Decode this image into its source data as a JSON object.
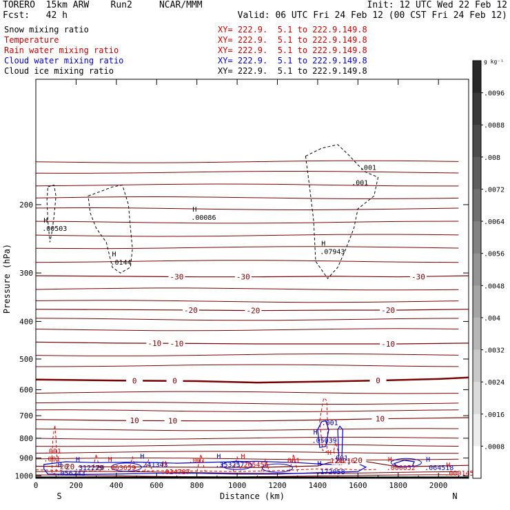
{
  "header": {
    "left1": "TORERO  15km ARW    Run2     NCAR/MMM",
    "left2": "Fcst:   42 h",
    "init": "Init: 12 UTC Wed 22 Feb 12",
    "valid": "Valid: 06 UTC Fri 24 Feb 12 (00 CST Fri 24 Feb 12)"
  },
  "fields": [
    {
      "label": "Snow mixing ratio",
      "xy": "XY= 222.9.  5.1 to 222.9.149.8",
      "color": "#000000"
    },
    {
      "label": "Temperature",
      "xy": "XY= 222.9.  5.1 to 222.9.149.8",
      "color": "#cc0000"
    },
    {
      "label": "Rain water mixing ratio",
      "xy": "XY= 222.9.  5.1 to 222.9.149.8",
      "color": "#cc0000"
    },
    {
      "label": "Cloud water mixing ratio",
      "xy": "XY= 222.9.  5.1 to 222.9.149.8",
      "color": "#0000cc"
    },
    {
      "label": "Cloud ice mixing ratio",
      "xy": "XY= 222.9.  5.1 to 222.9.149.8",
      "color": "#000000"
    }
  ],
  "colors": {
    "temperature": "#7a0000",
    "freezing": "#7a0000",
    "rain": "#dd0000",
    "cloud_water": "#0000cc",
    "snow": "#000000",
    "axis": "#000000"
  },
  "chart_data": {
    "type": "contour",
    "xlabel": "Distance (km)",
    "ylabel": "Pressure (hPa)",
    "xlim": [
      0,
      2150
    ],
    "ylim": [
      1015,
      95
    ],
    "y_scale": "log",
    "x_ticks": [
      0,
      200,
      400,
      600,
      800,
      1000,
      1200,
      1400,
      1600,
      1800,
      2000
    ],
    "y_ticks": [
      200,
      300,
      400,
      500,
      600,
      700,
      800,
      900,
      1000
    ],
    "x_endpoints": {
      "left": "S",
      "right": "N"
    },
    "colorbar": {
      "unit": "g kg⁻¹",
      "labels": [
        ".0096",
        ".0088",
        ".008",
        ".0072",
        ".0064",
        ".0056",
        ".0048",
        ".004",
        ".0032",
        ".0024",
        ".0016",
        ".0008"
      ],
      "values": [
        0.0096,
        0.0088,
        0.008,
        0.0072,
        0.0064,
        0.0056,
        0.0048,
        0.004,
        0.0032,
        0.0024,
        0.0016,
        0.0008
      ],
      "range": [
        0,
        0.0104
      ]
    },
    "temperature_contours": [
      {
        "level": -30,
        "label": "-30",
        "label_x": [
          700,
          1030,
          1900
        ],
        "points": [
          [
            0,
            305
          ],
          [
            400,
            306
          ],
          [
            800,
            307
          ],
          [
            1100,
            307
          ],
          [
            1500,
            306
          ],
          [
            1800,
            307
          ],
          [
            2150,
            305
          ]
        ]
      },
      {
        "level": -20,
        "label": "-20",
        "label_x": [
          770,
          1080,
          1750
        ],
        "points": [
          [
            0,
            372
          ],
          [
            400,
            373
          ],
          [
            800,
            374
          ],
          [
            1100,
            375
          ],
          [
            1500,
            374
          ],
          [
            1800,
            374
          ],
          [
            2150,
            372
          ]
        ]
      },
      {
        "level": -10,
        "label": "-10",
        "label_x": [
          590,
          700,
          1750
        ],
        "points": [
          [
            0,
            452
          ],
          [
            400,
            455
          ],
          [
            800,
            456
          ],
          [
            1100,
            457
          ],
          [
            1500,
            457
          ],
          [
            1800,
            457
          ],
          [
            2150,
            455
          ]
        ]
      },
      {
        "level": 0,
        "label": "0",
        "label_x": [
          490,
          690,
          1700
        ],
        "bold": true,
        "points": [
          [
            0,
            565
          ],
          [
            400,
            568
          ],
          [
            800,
            570
          ],
          [
            1100,
            575
          ],
          [
            1400,
            572
          ],
          [
            1700,
            568
          ],
          [
            2000,
            563
          ],
          [
            2150,
            558
          ]
        ]
      },
      {
        "level": 10,
        "label": "10",
        "label_x": [
          490,
          680,
          1710
        ],
        "points": [
          [
            0,
            716
          ],
          [
            400,
            720
          ],
          [
            800,
            722
          ],
          [
            1100,
            722
          ],
          [
            1400,
            718
          ],
          [
            1700,
            713
          ],
          [
            2150,
            708
          ]
        ]
      },
      {
        "level": 20,
        "label": "20",
        "label_x": [
          170,
          1510,
          1600
        ],
        "points": [
          [
            0,
            945
          ],
          [
            300,
            948
          ],
          [
            700,
            950
          ],
          [
            1100,
            952
          ],
          [
            1400,
            943
          ],
          [
            1500,
            912
          ],
          [
            1600,
            912
          ],
          [
            1800,
            948
          ],
          [
            2150,
            940
          ]
        ]
      }
    ],
    "other_isotherms_hpa": [
      155,
      165,
      178,
      192,
      205,
      222,
      240,
      258,
      280,
      330,
      355,
      395,
      420,
      488,
      520,
      610,
      650,
      680,
      760,
      800,
      835,
      870,
      905,
      980,
      1000
    ],
    "snow_contours": [
      {
        "level": 0.001,
        "label": ".001",
        "label_x": [
          1650,
          1610
        ],
        "points": [
          [
            1340,
            150
          ],
          [
            1420,
            143
          ],
          [
            1500,
            140
          ],
          [
            1560,
            150
          ],
          [
            1600,
            158
          ],
          [
            1640,
            165
          ],
          [
            1700,
            170
          ],
          [
            1680,
            190
          ],
          [
            1600,
            205
          ],
          [
            1580,
            230
          ],
          [
            1540,
            260
          ],
          [
            1500,
            290
          ],
          [
            1450,
            310
          ],
          [
            1390,
            280
          ],
          [
            1380,
            220
          ],
          [
            1360,
            180
          ],
          [
            1340,
            150
          ]
        ]
      },
      {
        "level": 0.001,
        "points": [
          [
            60,
            180
          ],
          [
            90,
            178
          ],
          [
            100,
            190
          ],
          [
            90,
            215
          ],
          [
            80,
            235
          ],
          [
            70,
            250
          ],
          [
            60,
            220
          ],
          [
            55,
            195
          ],
          [
            60,
            180
          ]
        ]
      },
      {
        "level": 0.001,
        "points": [
          [
            260,
            190
          ],
          [
            320,
            185
          ],
          [
            380,
            180
          ],
          [
            430,
            178
          ],
          [
            460,
            200
          ],
          [
            470,
            230
          ],
          [
            480,
            260
          ],
          [
            470,
            290
          ],
          [
            420,
            300
          ],
          [
            380,
            290
          ],
          [
            350,
            250
          ],
          [
            300,
            230
          ],
          [
            270,
            210
          ],
          [
            260,
            190
          ]
        ]
      }
    ],
    "rain_contours": [
      {
        "level": 0.001,
        "label": ".001",
        "label_x": [
          85,
          80
        ],
        "points": [
          [
            80,
            900
          ],
          [
            85,
            800
          ],
          [
            95,
            740
          ],
          [
            100,
            800
          ],
          [
            105,
            900
          ],
          [
            100,
            985
          ],
          [
            80,
            990
          ],
          [
            80,
            900
          ]
        ]
      },
      {
        "level": 0.001,
        "points": [
          [
            1410,
            720
          ],
          [
            1430,
            630
          ],
          [
            1445,
            640
          ],
          [
            1450,
            760
          ],
          [
            1445,
            870
          ],
          [
            1425,
            860
          ],
          [
            1410,
            720
          ]
        ]
      },
      {
        "level": 0.001,
        "points": [
          [
            1480,
            860
          ],
          [
            1490,
            820
          ],
          [
            1510,
            900
          ],
          [
            1520,
            940
          ],
          [
            1490,
            930
          ],
          [
            1480,
            860
          ]
        ]
      }
    ],
    "rain_low_line": [
      [
        0,
        965
      ],
      [
        200,
        970
      ],
      [
        400,
        975
      ],
      [
        600,
        970
      ],
      [
        800,
        972
      ],
      [
        1000,
        975
      ],
      [
        1200,
        970
      ],
      [
        1400,
        960
      ],
      [
        1500,
        958
      ],
      [
        1600,
        966
      ],
      [
        1700,
        963
      ]
    ],
    "cloud_water_contours": [
      {
        "level": 0.001,
        "label": ".001",
        "label_x": [
          1440
        ],
        "points": [
          [
            1400,
            760
          ],
          [
            1420,
            725
          ],
          [
            1440,
            722
          ],
          [
            1455,
            760
          ],
          [
            1440,
            840
          ],
          [
            1410,
            845
          ],
          [
            1400,
            760
          ]
        ]
      },
      {
        "level": 0.001,
        "points": [
          [
            1500,
            760
          ],
          [
            1510,
            745
          ],
          [
            1525,
            760
          ],
          [
            1520,
            900
          ],
          [
            1505,
            905
          ],
          [
            1500,
            760
          ]
        ]
      },
      {
        "level": 0.001,
        "points": [
          [
            40,
            935
          ],
          [
            150,
            920
          ],
          [
            300,
            925
          ],
          [
            500,
            922
          ],
          [
            700,
            928
          ],
          [
            900,
            922
          ],
          [
            1100,
            918
          ],
          [
            1300,
            925
          ],
          [
            1450,
            935
          ],
          [
            1600,
            930
          ],
          [
            1640,
            950
          ],
          [
            1600,
            975
          ],
          [
            1400,
            982
          ],
          [
            1200,
            990
          ],
          [
            1000,
            990
          ],
          [
            800,
            985
          ],
          [
            600,
            985
          ],
          [
            400,
            990
          ],
          [
            200,
            992
          ],
          [
            60,
            990
          ],
          [
            40,
            960
          ],
          [
            40,
            935
          ]
        ]
      },
      {
        "level": 0.001,
        "points": [
          [
            1780,
            930
          ],
          [
            1830,
            912
          ],
          [
            1880,
            920
          ],
          [
            1870,
            945
          ],
          [
            1800,
            950
          ],
          [
            1780,
            930
          ]
        ]
      }
    ],
    "maxima": [
      {
        "field": "snow",
        "label": "H",
        "value": ".00503",
        "x": 100,
        "p": 232
      },
      {
        "field": "snow",
        "label": "H",
        "value": ".0144",
        "x": 440,
        "p": 283
      },
      {
        "field": "snow",
        "label": "H",
        "value": ".00086",
        "x": 840,
        "p": 217
      },
      {
        "field": "snow",
        "label": "H",
        "value": ".07943",
        "x": 1480,
        "p": 266
      },
      {
        "field": "cloud_water",
        "label": "H",
        "value": ".05039",
        "x": 1440,
        "p": 815
      },
      {
        "field": "cloud_water",
        "label": "H",
        "value": ".312229",
        "x": 260,
        "p": 958
      },
      {
        "field": "rain",
        "label": "H",
        "value": ".063659",
        "x": 420,
        "p": 958
      },
      {
        "field": "cloud_water",
        "label": "H",
        "value": ".241343",
        "x": 580,
        "p": 941
      },
      {
        "field": "rain",
        "label": "H",
        "value": ".024787",
        "x": 690,
        "p": 983
      },
      {
        "field": "cloud_water",
        "label": "H",
        "value": ".353257",
        "x": 960,
        "p": 941
      },
      {
        "field": "rain",
        "label": "H",
        "value": ".265456",
        "x": 1080,
        "p": 941
      },
      {
        "field": "cloud_water",
        "label": "H",
        "value": ".172058",
        "x": 1460,
        "p": 983
      },
      {
        "field": "rain",
        "label": "H",
        "value": ".120216",
        "x": 1510,
        "p": 920
      },
      {
        "field": "rain",
        "label": "H",
        "value": ".000052",
        "x": 1810,
        "p": 958
      },
      {
        "field": "cloud_water",
        "label": "H",
        "value": ".064518",
        "x": 2000,
        "p": 958
      },
      {
        "field": "cloud_water",
        "label": "H",
        "value": ".056243",
        "x": 170,
        "p": 990
      },
      {
        "field": "rain",
        "label": "H",
        "value": ".000145",
        "x": 2100,
        "p": 990
      }
    ],
    "extra_labels": [
      {
        "field": "rain",
        "text": ".001",
        "x": 800,
        "p": 910
      },
      {
        "field": "rain",
        "text": ".001",
        "x": 1270,
        "p": 910
      },
      {
        "field": "cloud_water",
        "text": ".001",
        "x": 1510,
        "p": 897
      },
      {
        "field": "temperature",
        "text": "20",
        "x": 320,
        "p": 950
      },
      {
        "field": "temperature",
        "text": "20",
        "x": 140,
        "p": 945
      }
    ]
  }
}
